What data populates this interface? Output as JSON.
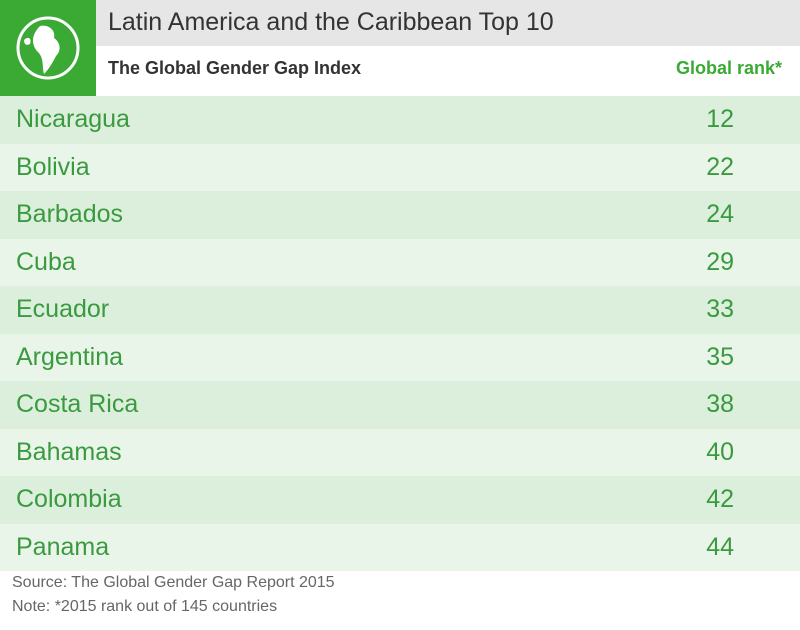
{
  "header": {
    "title": "Latin America and the Caribbean Top 10",
    "subtitle": "The Global Gender Gap Index",
    "column_label": "Global rank*"
  },
  "table": {
    "rows": [
      [
        "Nicaragua",
        12
      ],
      [
        "Bolivia",
        22
      ],
      [
        "Barbados",
        24
      ],
      [
        "Cuba",
        29
      ],
      [
        "Ecuador",
        33
      ],
      [
        "Argentina",
        35
      ],
      [
        "Costa Rica",
        38
      ],
      [
        "Bahamas",
        40
      ],
      [
        "Colombia",
        42
      ],
      [
        "Panama",
        44
      ]
    ]
  },
  "footer": {
    "source": "Source: The Global Gender Gap Report 2015",
    "note": "Note: *2015 rank out of 145 countries"
  }
}
